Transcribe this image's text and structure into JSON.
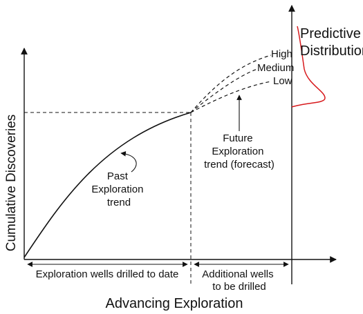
{
  "labels": {
    "y_axis": "Cumulative Discoveries",
    "x_axis": "Advancing Exploration",
    "past_trend": [
      "Past",
      "Exploration",
      "trend"
    ],
    "future_trend": [
      "Future",
      "Exploration",
      "trend (forecast)"
    ],
    "scenario_high": "High",
    "scenario_medium": "Medium",
    "scenario_low": "Low",
    "predictive_distribution": [
      "Predictive",
      "Distribution"
    ],
    "wells_to_date": "Exploration wells drilled to date",
    "additional_wells": [
      "Additional wells",
      "to be drilled"
    ]
  },
  "colors": {
    "line": "#111111",
    "distribution": "#d7191c",
    "background": "#ffffff"
  }
}
